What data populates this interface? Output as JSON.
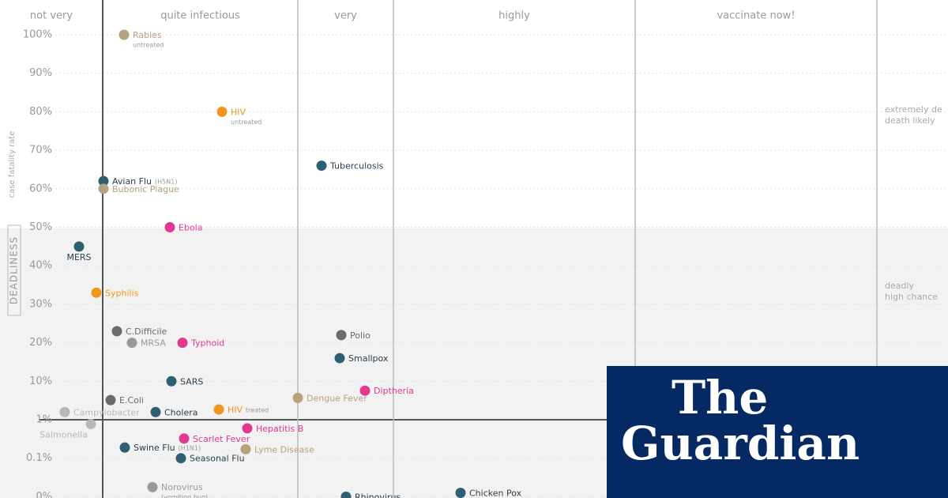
{
  "chart_data": {
    "type": "scatter",
    "y_axis_title": "DEADLINESS",
    "y_axis_subtitle": "case fatality rate",
    "ylim": [
      0,
      100
    ],
    "yticks": [
      {
        "value": 100,
        "label": "100%"
      },
      {
        "value": 90,
        "label": "90%"
      },
      {
        "value": 80,
        "label": "80%"
      },
      {
        "value": 70,
        "label": "70%"
      },
      {
        "value": 60,
        "label": "60%"
      },
      {
        "value": 50,
        "label": "50%"
      },
      {
        "value": 40,
        "label": "40%"
      },
      {
        "value": 30,
        "label": "30%"
      },
      {
        "value": 20,
        "label": "20%"
      },
      {
        "value": 10,
        "label": "10%"
      },
      {
        "value": 1,
        "label": "1%"
      },
      {
        "value": 0.1,
        "label": "0.1%"
      },
      {
        "value": 0,
        "label": "0%"
      }
    ],
    "xlim": [
      0,
      12
    ],
    "zones": [
      {
        "label": "not very",
        "start": 0,
        "end": 1.3
      },
      {
        "label": "quite infectious",
        "start": 1.3,
        "end": 3.77
      },
      {
        "label": "very",
        "start": 3.77,
        "end": 4.98
      },
      {
        "label": "highly",
        "start": 4.98,
        "end": 8.04
      },
      {
        "label": "vaccinate now!",
        "start": 8.04,
        "end": 11.1
      }
    ],
    "side_labels": [
      {
        "title": "extremely de",
        "subtitle": "death likely"
      },
      {
        "title": "deadly",
        "subtitle": "high chance"
      }
    ],
    "points": [
      {
        "name": "Rabies",
        "note": "untreated",
        "color": "#b5a27e",
        "x": 1.57,
        "y": 100
      },
      {
        "name": "HIV",
        "note": "untreated",
        "color": "#f0961e",
        "x": 2.81,
        "y": 80
      },
      {
        "name": "Tuberculosis",
        "color": "#2f5f73",
        "x": 4.07,
        "y": 66
      },
      {
        "name": "Avian Flu",
        "note": "(H5N1)",
        "color": "#2f5f73",
        "x": 1.31,
        "y": 62
      },
      {
        "name": "Bubonic Plague",
        "color": "#b5a27e",
        "x": 1.31,
        "y": 60
      },
      {
        "name": "Ebola",
        "color": "#e0398f",
        "x": 2.15,
        "y": 50
      },
      {
        "name": "MERS",
        "color": "#2f5f73",
        "x": 1.0,
        "y": 45
      },
      {
        "name": "Syphilis",
        "color": "#f0961e",
        "x": 1.22,
        "y": 33
      },
      {
        "name": "C.Difficile",
        "color": "#6b6b6b",
        "x": 1.48,
        "y": 23
      },
      {
        "name": "Polio",
        "color": "#6b6b6b",
        "x": 4.32,
        "y": 22
      },
      {
        "name": "MRSA",
        "color": "#9a9a9a",
        "x": 1.67,
        "y": 20
      },
      {
        "name": "Typhoid",
        "color": "#e0398f",
        "x": 2.31,
        "y": 20
      },
      {
        "name": "Smallpox",
        "color": "#2f5f73",
        "x": 4.3,
        "y": 16
      },
      {
        "name": "SARS",
        "color": "#2f5f73",
        "x": 2.17,
        "y": 10
      },
      {
        "name": "Diptheria",
        "color": "#e0398f",
        "x": 4.62,
        "y": 7.8
      },
      {
        "name": "E.Coli",
        "color": "#6b6b6b",
        "x": 1.4,
        "y": 5.6
      },
      {
        "name": "Dengue Fever",
        "color": "#b5a27e",
        "x": 3.77,
        "y": 6.1
      },
      {
        "name": "Campylobacter",
        "color": "#b8b8b8",
        "x": 0.82,
        "y": 2.8
      },
      {
        "name": "Cholera",
        "color": "#2f5f73",
        "x": 1.97,
        "y": 2.8
      },
      {
        "name": "HIV",
        "note": "treated",
        "color": "#f0961e",
        "x": 2.77,
        "y": 3.4
      },
      {
        "name": "Salmonella",
        "color": "#b8b8b8",
        "x": 1.15,
        "y": 0.9
      },
      {
        "name": "Hepatitis B",
        "color": "#e0398f",
        "x": 3.13,
        "y": 0.8
      },
      {
        "name": "Scarlet Fever",
        "color": "#e0398f",
        "x": 2.33,
        "y": 0.56
      },
      {
        "name": "Swine Flu",
        "note": "(H1N1)",
        "color": "#2f5f73",
        "x": 1.58,
        "y": 0.35
      },
      {
        "name": "Lyme Disease",
        "color": "#b5a27e",
        "x": 3.11,
        "y": 0.31
      },
      {
        "name": "Seasonal Flu",
        "color": "#2f5f73",
        "x": 2.29,
        "y": 0.1
      },
      {
        "name": "Norovirus",
        "note": "(vomiting bug)",
        "color": "#9a9a9a",
        "x": 1.93,
        "y": 0.025
      },
      {
        "name": "Rhinovirus",
        "color": "#2f5f73",
        "x": 4.38,
        "y": 0
      },
      {
        "name": "Chicken Pox",
        "color": "#2f5f73",
        "x": 5.83,
        "y": 0.01
      }
    ]
  },
  "logo": {
    "line1": "The",
    "line2": "Guardian"
  }
}
